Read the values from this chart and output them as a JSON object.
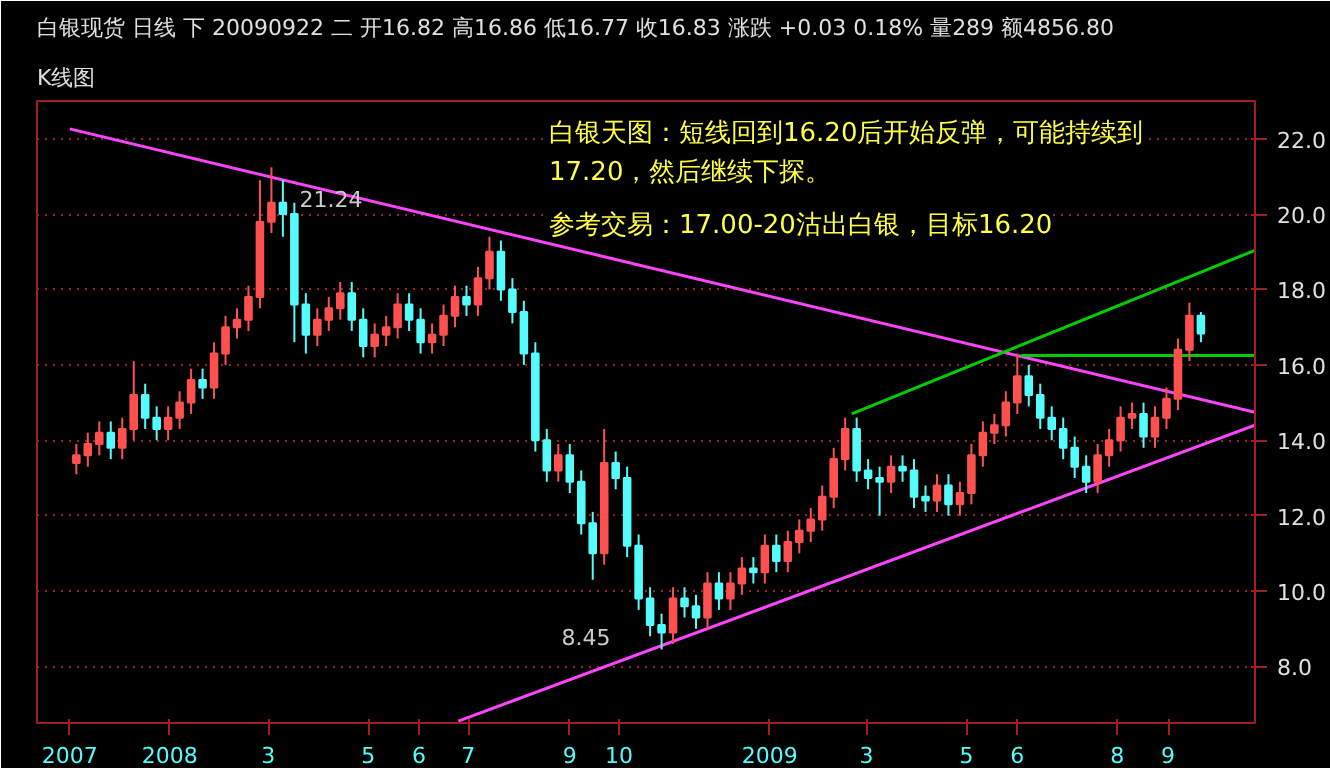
{
  "chart_data": {
    "type": "candlestick",
    "title": "白银现货  日线  下  20090922  二  开16.82  高16.86  低16.77  收16.83  涨跌  +0.03  0.18%  量289  额4856.80",
    "subtitle": "K线图",
    "x": [
      "2007-11-05",
      "2007-11-12",
      "2007-11-19",
      "2007-11-26",
      "2007-12-03",
      "2007-12-10",
      "2007-12-17",
      "2007-12-24",
      "2007-12-31",
      "2008-01-07",
      "2008-01-14",
      "2008-01-21",
      "2008-01-28",
      "2008-02-04",
      "2008-02-11",
      "2008-02-18",
      "2008-02-25",
      "2008-03-03",
      "2008-03-10",
      "2008-03-17",
      "2008-03-24",
      "2008-03-31",
      "2008-04-07",
      "2008-04-14",
      "2008-04-21",
      "2008-04-28",
      "2008-05-05",
      "2008-05-12",
      "2008-05-19",
      "2008-05-26",
      "2008-06-02",
      "2008-06-09",
      "2008-06-16",
      "2008-06-23",
      "2008-06-30",
      "2008-07-07",
      "2008-07-14",
      "2008-07-21",
      "2008-07-28",
      "2008-08-04",
      "2008-08-11",
      "2008-08-18",
      "2008-08-25",
      "2008-09-01",
      "2008-09-08",
      "2008-09-15",
      "2008-09-22",
      "2008-09-29",
      "2008-10-06",
      "2008-10-13",
      "2008-10-20",
      "2008-10-27",
      "2008-11-03",
      "2008-11-10",
      "2008-11-17",
      "2008-11-24",
      "2008-12-01",
      "2008-12-08",
      "2008-12-15",
      "2008-12-22",
      "2008-12-29",
      "2009-01-05",
      "2009-01-12",
      "2009-01-19",
      "2009-01-26",
      "2009-02-02",
      "2009-02-09",
      "2009-02-16",
      "2009-02-23",
      "2009-03-02",
      "2009-03-09",
      "2009-03-16",
      "2009-03-23",
      "2009-03-30",
      "2009-04-06",
      "2009-04-13",
      "2009-04-20",
      "2009-04-27",
      "2009-05-04",
      "2009-05-11",
      "2009-05-18",
      "2009-05-25",
      "2009-06-01",
      "2009-06-08",
      "2009-06-15",
      "2009-06-22",
      "2009-06-29",
      "2009-07-06",
      "2009-07-13",
      "2009-07-20",
      "2009-07-27",
      "2009-08-03",
      "2009-08-10",
      "2009-08-17",
      "2009-08-24",
      "2009-08-31",
      "2009-09-07",
      "2009-09-14",
      "2009-09-21"
    ],
    "ohlc": [
      [
        13.4,
        13.9,
        13.1,
        13.6
      ],
      [
        13.6,
        14.2,
        13.3,
        13.9
      ],
      [
        13.9,
        14.5,
        13.6,
        14.2
      ],
      [
        14.2,
        14.5,
        13.5,
        13.8
      ],
      [
        13.8,
        14.6,
        13.5,
        14.3
      ],
      [
        14.3,
        16.1,
        14.0,
        15.2
      ],
      [
        15.2,
        15.5,
        14.3,
        14.6
      ],
      [
        14.6,
        14.9,
        14.0,
        14.3
      ],
      [
        14.3,
        14.9,
        14.0,
        14.6
      ],
      [
        14.6,
        15.3,
        14.3,
        15.0
      ],
      [
        15.0,
        15.9,
        14.7,
        15.6
      ],
      [
        15.6,
        15.9,
        15.1,
        15.4
      ],
      [
        15.4,
        16.6,
        15.1,
        16.3
      ],
      [
        16.3,
        17.3,
        16.0,
        17.0
      ],
      [
        17.0,
        17.5,
        16.7,
        17.2
      ],
      [
        17.2,
        18.1,
        16.9,
        17.8
      ],
      [
        17.8,
        20.9,
        17.5,
        19.8
      ],
      [
        19.8,
        21.24,
        19.5,
        20.3
      ],
      [
        20.3,
        20.9,
        19.4,
        20.0
      ],
      [
        20.0,
        20.3,
        16.6,
        17.6
      ],
      [
        17.6,
        17.9,
        16.3,
        16.8
      ],
      [
        16.8,
        17.5,
        16.5,
        17.2
      ],
      [
        17.2,
        17.8,
        16.9,
        17.5
      ],
      [
        17.5,
        18.2,
        17.2,
        17.9
      ],
      [
        17.9,
        18.2,
        16.9,
        17.2
      ],
      [
        17.2,
        17.5,
        16.2,
        16.5
      ],
      [
        16.5,
        17.1,
        16.2,
        16.8
      ],
      [
        16.8,
        17.3,
        16.5,
        17.0
      ],
      [
        17.0,
        17.9,
        16.7,
        17.6
      ],
      [
        17.6,
        17.9,
        16.9,
        17.2
      ],
      [
        17.2,
        17.5,
        16.3,
        16.6
      ],
      [
        16.6,
        17.1,
        16.3,
        16.8
      ],
      [
        16.8,
        17.6,
        16.5,
        17.3
      ],
      [
        17.3,
        18.1,
        17.0,
        17.8
      ],
      [
        17.8,
        18.1,
        17.3,
        17.6
      ],
      [
        17.6,
        18.6,
        17.3,
        18.3
      ],
      [
        18.3,
        19.4,
        18.0,
        19.0
      ],
      [
        19.0,
        19.3,
        17.7,
        18.0
      ],
      [
        18.0,
        18.3,
        17.1,
        17.4
      ],
      [
        17.4,
        17.7,
        16.0,
        16.3
      ],
      [
        16.3,
        16.6,
        13.7,
        14.0
      ],
      [
        14.0,
        14.3,
        12.9,
        13.2
      ],
      [
        13.2,
        13.9,
        12.9,
        13.6
      ],
      [
        13.6,
        13.9,
        12.6,
        12.9
      ],
      [
        12.9,
        13.2,
        11.5,
        11.8
      ],
      [
        11.8,
        12.1,
        10.3,
        11.0
      ],
      [
        11.0,
        14.3,
        10.7,
        13.4
      ],
      [
        13.4,
        13.7,
        12.7,
        13.0
      ],
      [
        13.0,
        13.3,
        10.9,
        11.2
      ],
      [
        11.2,
        11.5,
        9.5,
        9.8
      ],
      [
        9.8,
        10.1,
        8.8,
        9.1
      ],
      [
        9.1,
        9.4,
        8.45,
        8.9
      ],
      [
        8.9,
        10.1,
        8.6,
        9.8
      ],
      [
        9.8,
        10.1,
        9.3,
        9.6
      ],
      [
        9.6,
        9.9,
        9.0,
        9.3
      ],
      [
        9.3,
        10.5,
        9.0,
        10.2
      ],
      [
        10.2,
        10.5,
        9.5,
        9.8
      ],
      [
        9.8,
        10.5,
        9.5,
        10.2
      ],
      [
        10.2,
        10.9,
        9.9,
        10.6
      ],
      [
        10.6,
        10.9,
        10.2,
        10.5
      ],
      [
        10.5,
        11.5,
        10.2,
        11.2
      ],
      [
        11.2,
        11.5,
        10.5,
        10.8
      ],
      [
        10.8,
        11.6,
        10.5,
        11.3
      ],
      [
        11.3,
        11.9,
        11.0,
        11.6
      ],
      [
        11.6,
        12.2,
        11.3,
        11.9
      ],
      [
        11.9,
        12.8,
        11.6,
        12.5
      ],
      [
        12.5,
        13.8,
        12.2,
        13.5
      ],
      [
        13.5,
        14.6,
        13.2,
        14.3
      ],
      [
        14.3,
        14.6,
        12.9,
        13.2
      ],
      [
        13.2,
        13.5,
        12.7,
        13.0
      ],
      [
        13.0,
        13.3,
        12.0,
        12.9
      ],
      [
        12.9,
        13.6,
        12.6,
        13.3
      ],
      [
        13.3,
        13.6,
        12.9,
        13.2
      ],
      [
        13.2,
        13.5,
        12.2,
        12.5
      ],
      [
        12.5,
        12.8,
        12.1,
        12.4
      ],
      [
        12.4,
        13.1,
        12.1,
        12.8
      ],
      [
        12.8,
        13.1,
        12.0,
        12.3
      ],
      [
        12.3,
        12.9,
        12.0,
        12.6
      ],
      [
        12.6,
        13.9,
        12.3,
        13.6
      ],
      [
        13.6,
        14.5,
        13.3,
        14.2
      ],
      [
        14.2,
        14.7,
        13.9,
        14.4
      ],
      [
        14.4,
        15.3,
        14.1,
        15.0
      ],
      [
        15.0,
        16.3,
        14.7,
        15.7
      ],
      [
        15.7,
        16.0,
        14.9,
        15.2
      ],
      [
        15.2,
        15.5,
        14.3,
        14.6
      ],
      [
        14.6,
        14.9,
        14.0,
        14.3
      ],
      [
        14.3,
        14.6,
        13.5,
        13.8
      ],
      [
        13.8,
        14.1,
        13.0,
        13.3
      ],
      [
        13.3,
        13.6,
        12.6,
        12.9
      ],
      [
        12.9,
        13.9,
        12.6,
        13.6
      ],
      [
        13.6,
        14.3,
        13.3,
        14.0
      ],
      [
        14.0,
        14.9,
        13.7,
        14.6
      ],
      [
        14.6,
        15.0,
        14.3,
        14.7
      ],
      [
        14.7,
        15.0,
        13.8,
        14.1
      ],
      [
        14.1,
        14.9,
        13.8,
        14.6
      ],
      [
        14.6,
        15.4,
        14.3,
        15.1
      ],
      [
        15.1,
        16.7,
        14.8,
        16.4
      ],
      [
        16.4,
        17.65,
        16.1,
        17.3
      ],
      [
        17.3,
        17.4,
        16.6,
        16.83
      ]
    ],
    "series": [
      {
        "type": "line",
        "color": "#ff44ff",
        "x": [
          "2007-11-01",
          "2009-10-24"
        ],
        "values": [
          22.26,
          14.74
        ]
      },
      {
        "type": "line",
        "color": "#ff44ff",
        "x": [
          "2008-06-25",
          "2009-10-24"
        ],
        "values": [
          6.55,
          14.4
        ]
      },
      {
        "type": "line",
        "color": "#00cc00",
        "x": [
          "2009-02-20",
          "2009-10-24"
        ],
        "values": [
          14.7,
          19.04
        ]
      },
      {
        "type": "line",
        "color": "#00cc00",
        "x": [
          "2009-06-03",
          "2009-10-24"
        ],
        "values": [
          16.25,
          16.25
        ]
      }
    ],
    "annotations": [
      "白银天图：短线回到16.20后开始反弹，可能持续到17.20，然后继续下探。",
      "参考交易：17.00-20沽出白银，目标16.20",
      {
        "text": "21.24",
        "x": "2008-03-03",
        "y": 21.24
      },
      {
        "text": "8.45",
        "x": "2008-10-27",
        "y": 8.45
      }
    ],
    "xlim": [
      "2007-10-12",
      "2009-10-24"
    ],
    "xticks": [
      {
        "value": "2007-11-01",
        "label": "2007"
      },
      {
        "value": "2008-01-01",
        "label": "2008"
      },
      {
        "value": "2008-03-01",
        "label": "3"
      },
      {
        "value": "2008-05-01",
        "label": "5"
      },
      {
        "value": "2008-06-01",
        "label": "6"
      },
      {
        "value": "2008-07-01",
        "label": "7"
      },
      {
        "value": "2008-09-01",
        "label": "9"
      },
      {
        "value": "2008-10-01",
        "label": "10"
      },
      {
        "value": "2009-01-01",
        "label": "2009"
      },
      {
        "value": "2009-03-01",
        "label": "3"
      },
      {
        "value": "2009-05-01",
        "label": "5"
      },
      {
        "value": "2009-06-01",
        "label": "6"
      },
      {
        "value": "2009-08-01",
        "label": "8"
      },
      {
        "value": "2009-09-01",
        "label": "9"
      }
    ],
    "ylim": [
      6.5,
      23
    ],
    "yticks": [
      {
        "value": 8,
        "label": "8.0"
      },
      {
        "value": 10,
        "label": "10.0"
      },
      {
        "value": 12,
        "label": "12.0"
      },
      {
        "value": 14,
        "label": "14.0"
      },
      {
        "value": 16,
        "label": "16.0"
      },
      {
        "value": 18,
        "label": "18.0"
      },
      {
        "value": 20,
        "label": "20.0"
      },
      {
        "value": 22,
        "label": "22.0"
      }
    ],
    "grid": "y"
  }
}
